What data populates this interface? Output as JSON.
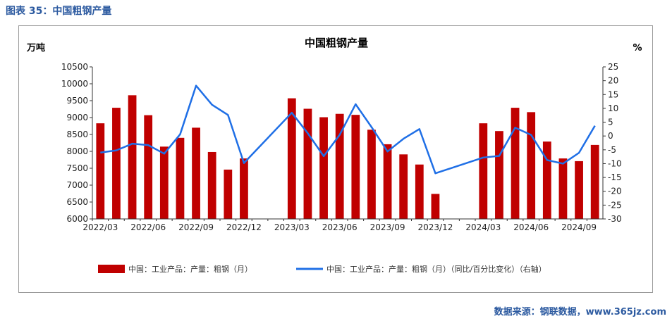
{
  "figure_heading": "图表 35：中国粗钢产量",
  "source_text": "数据来源：钢联数据，www.365jz.com",
  "colors": {
    "bar": "#c00000",
    "line": "#1f6fe6",
    "heading": "#2c5aa0"
  },
  "chart_data": {
    "type": "bar+line",
    "title": "中国粗钢产量",
    "left_unit": "万吨",
    "right_unit": "%",
    "ylim_left": [
      6000,
      10500
    ],
    "yticks_left": [
      6000,
      6500,
      7000,
      7500,
      8000,
      8500,
      9000,
      9500,
      10000,
      10500
    ],
    "ylim_right": [
      -30,
      25
    ],
    "yticks_right": [
      -30,
      -25,
      -20,
      -15,
      -10,
      -5,
      0,
      5,
      10,
      15,
      20,
      25
    ],
    "x_tick_labels": [
      "2022/03",
      "2022/06",
      "2022/09",
      "2022/12",
      "2023/03",
      "2023/06",
      "2023/09",
      "2023/12",
      "2024/03",
      "2024/06",
      "2024/09"
    ],
    "categories": [
      "2022/03",
      "2022/04",
      "2022/05",
      "2022/06",
      "2022/07",
      "2022/08",
      "2022/09",
      "2022/10",
      "2022/11",
      "2022/12",
      "2023/01",
      "2023/02",
      "2023/03",
      "2023/04",
      "2023/05",
      "2023/06",
      "2023/07",
      "2023/08",
      "2023/09",
      "2023/10",
      "2023/11",
      "2023/12",
      "2024/01",
      "2024/02",
      "2024/03",
      "2024/04",
      "2024/05",
      "2024/06",
      "2024/07",
      "2024/08",
      "2024/09",
      "2024/10"
    ],
    "series": [
      {
        "name": "中国：工业产品：产量：粗钢（月）",
        "type": "bar",
        "axis": "left",
        "values": [
          8830,
          9290,
          9660,
          9070,
          8140,
          8400,
          8700,
          7980,
          7460,
          7790,
          null,
          null,
          9570,
          9260,
          9010,
          9110,
          9080,
          8640,
          8210,
          7910,
          7610,
          6740,
          null,
          null,
          8830,
          8600,
          9290,
          9160,
          8290,
          7790,
          7710,
          8190
        ]
      },
      {
        "name": "中国：工业产品：产量：粗钢（月）（同比/百分比变化）（右轴）",
        "type": "line",
        "axis": "right",
        "values": [
          -6.0,
          -5.2,
          -2.8,
          -3.3,
          -6.4,
          0.6,
          18.2,
          11.3,
          7.6,
          -9.8,
          null,
          null,
          8.4,
          1.0,
          -7.3,
          0.4,
          11.5,
          3.2,
          -5.6,
          -1.0,
          2.5,
          -13.5,
          null,
          null,
          -7.8,
          -7.2,
          3.0,
          0.4,
          -8.7,
          -10.0,
          -6.1,
          3.7
        ]
      }
    ]
  }
}
